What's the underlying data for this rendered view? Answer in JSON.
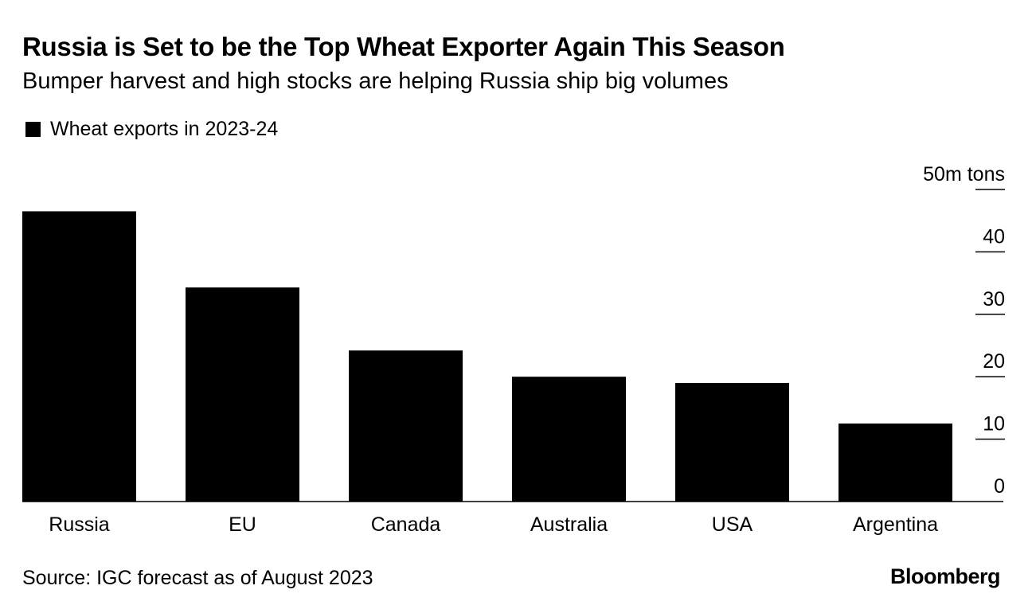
{
  "chart_data": {
    "type": "bar",
    "title": "Russia is Set to be the Top Wheat Exporter Again This Season",
    "subtitle": "Bumper harvest and high stocks are helping Russia ship big volumes",
    "categories": [
      "Russia",
      "EU",
      "Canada",
      "Australia",
      "USA",
      "Argentina"
    ],
    "series": [
      {
        "name": "Wheat exports in 2023-24",
        "values": [
          46.5,
          34.3,
          24.2,
          20.0,
          19.0,
          12.5
        ],
        "color": "#000000"
      }
    ],
    "ylim": [
      0,
      50
    ],
    "yticks": [
      0,
      10,
      20,
      30,
      40,
      50
    ],
    "ytick_labels": [
      "0",
      "10",
      "20",
      "30",
      "40",
      "50m tons"
    ],
    "yaxis_side": "right",
    "legend_placement": "top-left",
    "grid": false
  },
  "footer": {
    "source": "Source: IGC forecast as of August 2023",
    "brand": "Bloomberg"
  }
}
